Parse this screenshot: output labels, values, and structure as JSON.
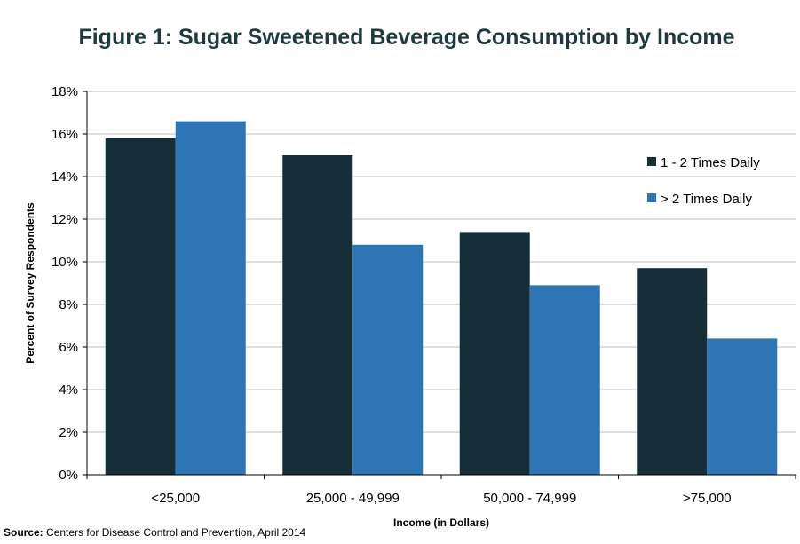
{
  "chart_data": {
    "type": "bar",
    "title": "Figure 1: Sugar Sweetened Beverage Consumption by Income",
    "xlabel": "Income (in Dollars)",
    "ylabel": "Percent of Survey Respondents",
    "categories": [
      "<25,000",
      "25,000 - 49,999",
      "50,000 - 74,999",
      ">75,000"
    ],
    "series": [
      {
        "name": "1 - 2 Times Daily",
        "color": "#162e38",
        "values": [
          15.8,
          15.0,
          11.4,
          9.7
        ]
      },
      {
        "name": "> 2 Times Daily",
        "color": "#2e75b6",
        "values": [
          16.6,
          10.8,
          8.9,
          6.4
        ]
      }
    ],
    "ylim": [
      0,
      18
    ],
    "yticks": [
      0,
      2,
      4,
      6,
      8,
      10,
      12,
      14,
      16,
      18
    ],
    "ytick_labels": [
      "0%",
      "2%",
      "4%",
      "6%",
      "8%",
      "10%",
      "12%",
      "14%",
      "16%",
      "18%"
    ],
    "grid": true,
    "legend_position": "right"
  },
  "source": {
    "label": "Source:",
    "text": "Centers for Disease Control and Prevention, April 2014"
  }
}
